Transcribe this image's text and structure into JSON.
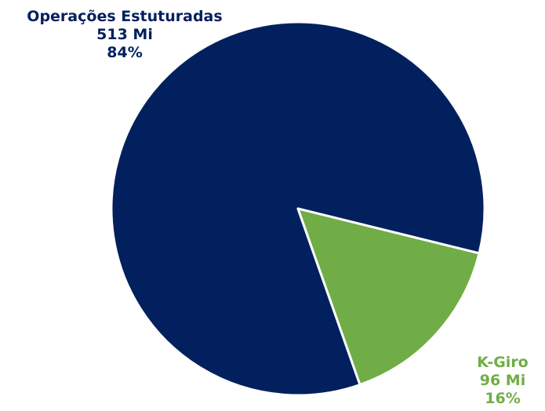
{
  "chart_data": {
    "type": "pie",
    "slices": [
      {
        "name": "Operações Estuturadas",
        "value": 513,
        "value_label": "513 Mi",
        "percent": 84,
        "percent_label": "84%",
        "color": "#03205e"
      },
      {
        "name": "K-Giro",
        "value": 96,
        "value_label": "96 Mi",
        "percent": 16,
        "percent_label": "16%",
        "color": "#70ad47"
      }
    ],
    "legend": "none",
    "slice_border_color": "#ffffff"
  }
}
